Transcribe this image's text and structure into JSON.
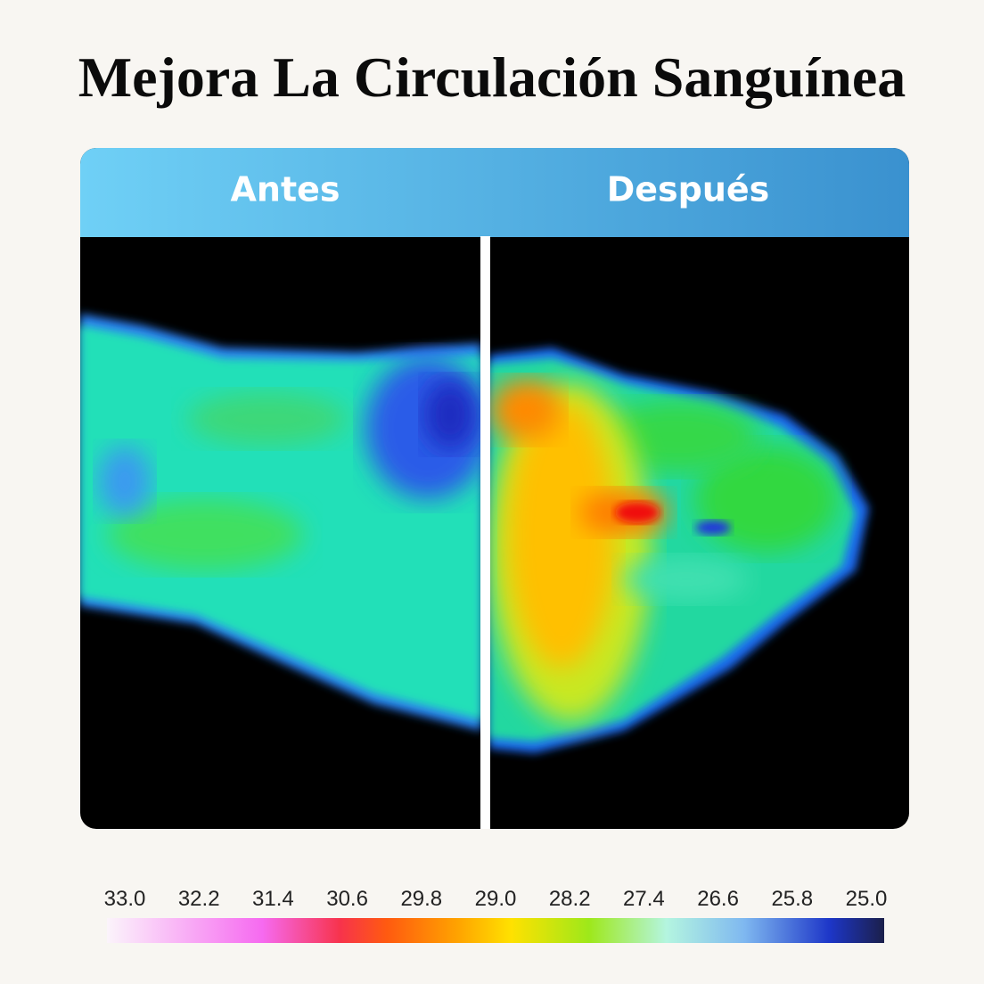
{
  "header": {
    "title": "Mejora La Circulación Sanguínea"
  },
  "comparison": {
    "before_label": "Antes",
    "after_label": "Después"
  },
  "scale": {
    "labels": [
      "33.0",
      "32.2",
      "31.4",
      "30.6",
      "29.8",
      "29.0",
      "28.2",
      "27.4",
      "26.6",
      "25.8",
      "25.0"
    ]
  }
}
